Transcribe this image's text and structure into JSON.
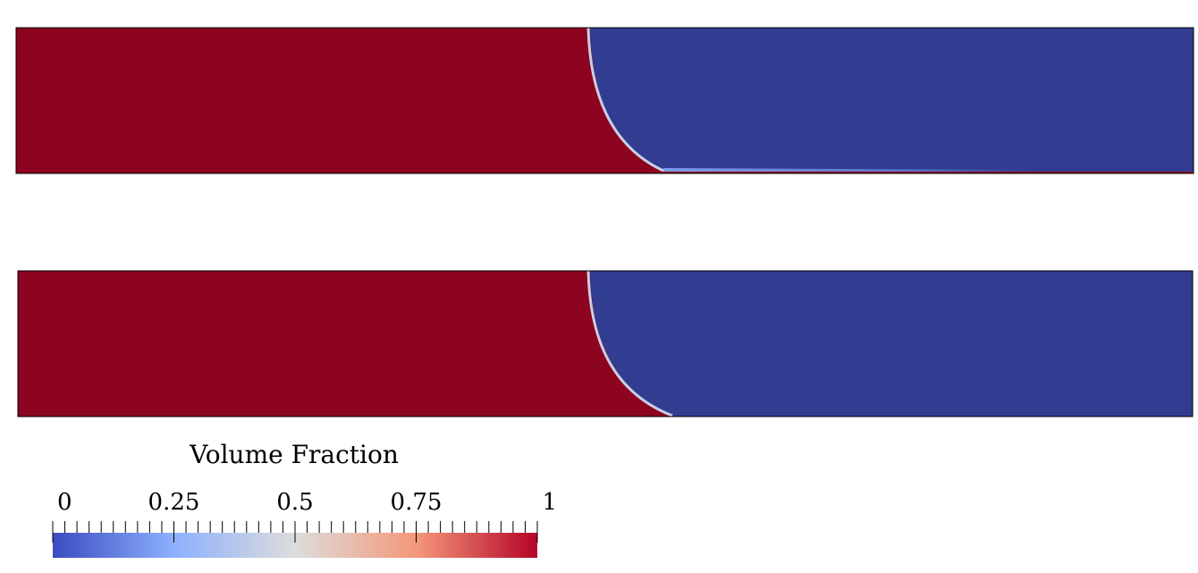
{
  "colorbar": {
    "title": "Volume Fraction",
    "ticks": [
      0,
      0.25,
      0.5,
      0.75,
      1
    ]
  }
}
